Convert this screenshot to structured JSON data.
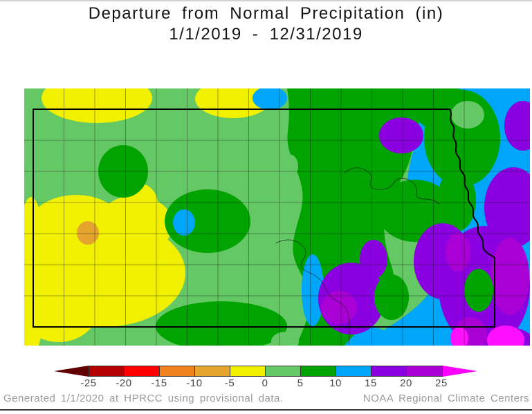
{
  "title": {
    "line1": "Departure from Normal Precipitation (in)",
    "line2": "1/1/2019 - 12/31/2019"
  },
  "map": {
    "region": "Kansas",
    "variable": "Departure from Normal Precipitation",
    "units": "inches",
    "period": "1/1/2019 - 12/31/2019"
  },
  "legend": {
    "left_arrow_color": "#600000",
    "right_arrow_color": "#FF00FF",
    "segments": [
      {
        "range": "-25 to -20",
        "color": "#B40000"
      },
      {
        "range": "-20 to -15",
        "color": "#FF0000"
      },
      {
        "range": "-15 to -10",
        "color": "#F0831E"
      },
      {
        "range": "-10 to -5",
        "color": "#E4A42E"
      },
      {
        "range": "-5 to 0",
        "color": "#F0F000"
      },
      {
        "range": "0 to 5",
        "color": "#64C864"
      },
      {
        "range": "5 to 10",
        "color": "#00A300"
      },
      {
        "range": "10 to 15",
        "color": "#00A6FA"
      },
      {
        "range": "15 to 20",
        "color": "#8A00E0"
      },
      {
        "range": "20 to 25",
        "color": "#A900D6"
      }
    ],
    "ticks": [
      "-25",
      "-20",
      "-15",
      "-10",
      "-5",
      "0",
      "5",
      "10",
      "15",
      "20",
      "25"
    ]
  },
  "footer": {
    "left": "Generated 1/1/2020 at HPRCC using provisional data.",
    "right": "NOAA Regional Climate Centers"
  },
  "chart_data": {
    "type": "filled_contour_map",
    "title": "Departure from Normal Precipitation (in)",
    "period": "1/1/2019 - 12/31/2019",
    "region": "Kansas (with bordering county margins)",
    "units": "inches",
    "contour_levels": [
      -25,
      -20,
      -15,
      -10,
      -5,
      0,
      5,
      10,
      15,
      20,
      25
    ],
    "color_scale": {
      "below -25": "#600000",
      "-25 to -20": "#B40000",
      "-20 to -15": "#FF0000",
      "-15 to -10": "#F0831E",
      "-10 to -5": "#E4A42E",
      "-5 to 0": "#F0F000",
      "0 to 5": "#64C864",
      "5 to 10": "#00A300",
      "10 to 15": "#00A6FA",
      "15 to 20": "#8A00E0",
      "20 to 25": "#A900D6",
      "above 25": "#FF00FF"
    },
    "regional_values": [
      {
        "area": "southwest Kansas",
        "departure_in": "-5 to 0",
        "note": "local minimum -10 to -5 spot"
      },
      {
        "area": "northwest and central Kansas",
        "departure_in": "0 to 5"
      },
      {
        "area": "north-central / central band",
        "departure_in": "5 to 10"
      },
      {
        "area": "east-central Kansas",
        "departure_in": "10 to 15"
      },
      {
        "area": "eastern Kansas",
        "departure_in": "15 to 20"
      },
      {
        "area": "southeast Kansas cores",
        "departure_in": "20 to 25"
      },
      {
        "area": "far southeast spots",
        "departure_in": "above 25"
      }
    ]
  }
}
